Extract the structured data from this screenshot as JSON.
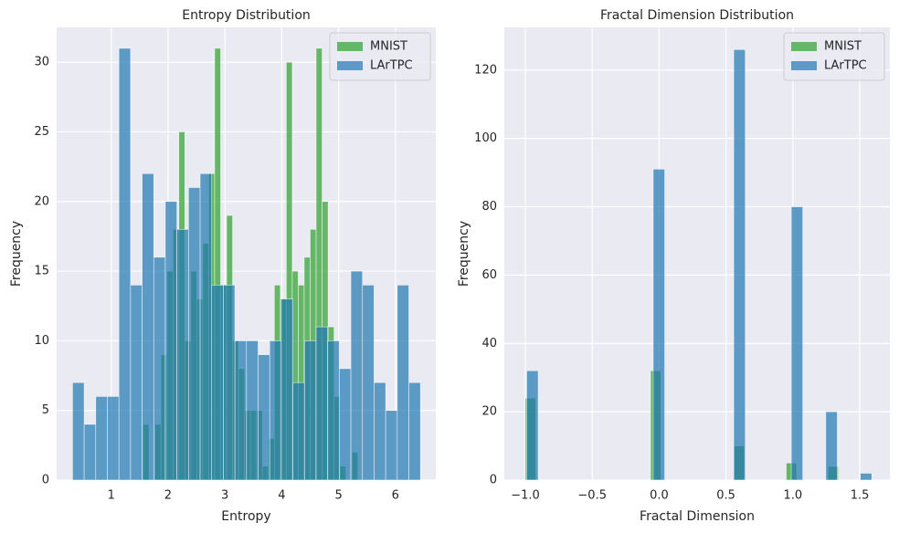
{
  "chart_data": [
    {
      "type": "histogram",
      "title": "Entropy Distribution",
      "xlabel": "Entropy",
      "ylabel": "Frequency",
      "xlim": [
        0.04,
        6.71
      ],
      "ylim": [
        0,
        32.5
      ],
      "xticks": [
        1,
        2,
        3,
        4,
        5,
        6
      ],
      "yticks": [
        0,
        5,
        10,
        15,
        20,
        25,
        30
      ],
      "grid": true,
      "legend": "upper right",
      "series": [
        {
          "name": "MNIST",
          "color": "#2ca02c",
          "bins": [
            1.56,
            1.665,
            1.77,
            1.875,
            1.98,
            2.085,
            2.19,
            2.295,
            2.4,
            2.505,
            2.61,
            2.715,
            2.82,
            2.925,
            3.03,
            3.135,
            3.24,
            3.345,
            3.45,
            3.555,
            3.66,
            3.765,
            3.87,
            3.975,
            4.08,
            4.185,
            4.29,
            4.395,
            4.5,
            4.605,
            4.71,
            4.815,
            4.92,
            5.025,
            5.13,
            5.235,
            5.34
          ],
          "values": [
            4,
            0,
            4,
            9,
            15,
            18,
            25,
            10,
            15,
            13,
            17,
            22,
            31,
            14,
            19,
            10,
            8,
            5,
            5,
            5,
            1,
            3,
            14,
            13,
            30,
            15,
            14,
            16,
            18,
            31,
            20,
            11,
            6,
            1,
            0,
            2
          ]
        },
        {
          "name": "LArTPC",
          "color": "#1f77b4",
          "bins": [
            0.32,
            0.524,
            0.728,
            0.932,
            1.136,
            1.34,
            1.544,
            1.748,
            1.952,
            2.156,
            2.36,
            2.564,
            2.768,
            2.972,
            3.176,
            3.38,
            3.584,
            3.788,
            3.992,
            4.196,
            4.4,
            4.604,
            4.808,
            5.012,
            5.216,
            5.42,
            5.624,
            5.828,
            6.032,
            6.236,
            6.44
          ],
          "values": [
            7,
            4,
            6,
            6,
            31,
            14,
            22,
            16,
            20,
            18,
            21,
            22,
            14,
            14,
            10,
            10,
            9,
            10,
            13,
            7,
            10,
            11,
            10,
            8,
            15,
            14,
            7,
            5,
            14,
            7
          ]
        }
      ]
    },
    {
      "type": "histogram",
      "title": "Fractal Dimension Distribution",
      "xlabel": "Fractal Dimension",
      "ylabel": "Frequency",
      "xlim": [
        -1.157,
        1.725
      ],
      "ylim": [
        0,
        132.5
      ],
      "xticks": [
        {
          "value": -1,
          "label": "−1.0"
        },
        {
          "value": -0.5,
          "label": "−0.5"
        },
        {
          "value": 0,
          "label": "0.0"
        },
        {
          "value": 0.5,
          "label": "0.5"
        },
        {
          "value": 1,
          "label": "1.0"
        },
        {
          "value": 1.5,
          "label": "1.5"
        }
      ],
      "yticks": [
        0,
        20,
        40,
        60,
        80,
        100,
        120
      ],
      "grid": true,
      "legend": "upper right",
      "series": [
        {
          "name": "MNIST",
          "color": "#2ca02c",
          "bins": [
            -1,
            -0.922,
            -0.844,
            -0.766,
            -0.688,
            -0.61,
            -0.532,
            -0.454,
            -0.376,
            -0.298,
            -0.22,
            -0.142,
            -0.064,
            0.014,
            0.092,
            0.17,
            0.248,
            0.326,
            0.404,
            0.482,
            0.56,
            0.638,
            0.716,
            0.794,
            0.872,
            0.95,
            1.028,
            1.106,
            1.184,
            1.262,
            1.34
          ],
          "values": [
            24,
            0,
            0,
            0,
            0,
            0,
            0,
            0,
            0,
            0,
            0,
            0,
            32,
            0,
            0,
            0,
            0,
            0,
            0,
            0,
            10,
            0,
            0,
            0,
            0,
            5,
            0,
            0,
            0,
            4
          ]
        },
        {
          "name": "LArTPC",
          "color": "#1f77b4",
          "bins": [
            -0.99,
            -0.904,
            -0.818,
            -0.732,
            -0.646,
            -0.56,
            -0.474,
            -0.388,
            -0.302,
            -0.216,
            -0.13,
            -0.044,
            0.042,
            0.128,
            0.214,
            0.3,
            0.386,
            0.472,
            0.558,
            0.644,
            0.73,
            0.816,
            0.902,
            0.988,
            1.074,
            1.16,
            1.246,
            1.332,
            1.418,
            1.504,
            1.59
          ],
          "values": [
            32,
            0,
            0,
            0,
            0,
            0,
            0,
            0,
            0,
            0,
            0,
            91,
            0,
            0,
            0,
            0,
            0,
            0,
            126,
            0,
            0,
            0,
            0,
            80,
            0,
            0,
            20,
            0,
            0,
            2
          ]
        }
      ]
    }
  ]
}
